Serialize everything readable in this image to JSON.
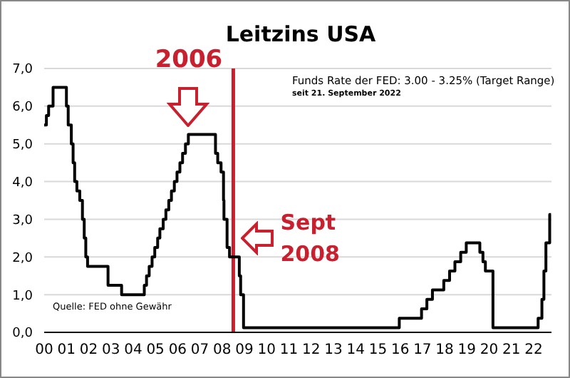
{
  "chart_data": {
    "type": "step",
    "title": "Leitzins USA",
    "x": [
      2000.0,
      2000.1,
      2000.2,
      2000.4,
      2001.0,
      2001.08,
      2001.22,
      2001.3,
      2001.37,
      2001.47,
      2001.6,
      2001.72,
      2001.8,
      2001.87,
      2001.95,
      2002.87,
      2003.48,
      2004.5,
      2004.6,
      2004.72,
      2004.85,
      2004.97,
      2005.1,
      2005.2,
      2005.35,
      2005.47,
      2005.6,
      2005.72,
      2005.85,
      2005.97,
      2006.1,
      2006.22,
      2006.35,
      2006.48,
      2007.7,
      2007.8,
      2007.95,
      2008.06,
      2008.08,
      2008.22,
      2008.33,
      2008.77,
      2008.83,
      2008.96,
      2015.96,
      2016.96,
      2017.2,
      2017.45,
      2017.96,
      2018.22,
      2018.46,
      2018.72,
      2018.97,
      2019.58,
      2019.72,
      2019.83,
      2020.17,
      2022.2,
      2022.37,
      2022.46,
      2022.55,
      2022.72,
      2022.78
    ],
    "series": [
      {
        "color": "#000000",
        "values": [
          5.5,
          5.75,
          6.0,
          6.5,
          6.0,
          5.5,
          5.0,
          4.5,
          4.0,
          3.75,
          3.5,
          3.0,
          2.5,
          2.0,
          1.75,
          1.25,
          1.0,
          1.25,
          1.5,
          1.75,
          2.0,
          2.25,
          2.5,
          2.75,
          3.0,
          3.25,
          3.5,
          3.75,
          4.0,
          4.25,
          4.5,
          4.75,
          5.0,
          5.25,
          4.75,
          4.5,
          4.25,
          3.5,
          3.0,
          2.25,
          2.0,
          1.5,
          1.0,
          0.125,
          0.375,
          0.625,
          0.875,
          1.125,
          1.375,
          1.625,
          1.875,
          2.125,
          2.375,
          2.125,
          1.875,
          1.625,
          0.125,
          0.375,
          0.875,
          1.625,
          2.375,
          3.125,
          3.125
        ]
      }
    ],
    "xlim": [
      2000,
      2022.8
    ],
    "xticks": [
      {
        "value": 2000,
        "label": "00"
      },
      {
        "value": 2001,
        "label": "01"
      },
      {
        "value": 2002,
        "label": "02"
      },
      {
        "value": 2003,
        "label": "03"
      },
      {
        "value": 2004,
        "label": "04"
      },
      {
        "value": 2005,
        "label": "05"
      },
      {
        "value": 2006,
        "label": "06"
      },
      {
        "value": 2007,
        "label": "07"
      },
      {
        "value": 2008,
        "label": "08"
      },
      {
        "value": 2009,
        "label": "09"
      },
      {
        "value": 2010,
        "label": "10"
      },
      {
        "value": 2011,
        "label": "11"
      },
      {
        "value": 2012,
        "label": "12"
      },
      {
        "value": 2013,
        "label": "13"
      },
      {
        "value": 2014,
        "label": "14"
      },
      {
        "value": 2015,
        "label": "15"
      },
      {
        "value": 2016,
        "label": "16"
      },
      {
        "value": 2017,
        "label": "17"
      },
      {
        "value": 2018,
        "label": "18"
      },
      {
        "value": 2019,
        "label": "19"
      },
      {
        "value": 2020,
        "label": "20"
      },
      {
        "value": 2021,
        "label": "21"
      },
      {
        "value": 2022,
        "label": "22"
      }
    ],
    "ylim": [
      0,
      7
    ],
    "yticks": [
      {
        "value": 0,
        "label": "0,0"
      },
      {
        "value": 1,
        "label": "1,0"
      },
      {
        "value": 2,
        "label": "2,0"
      },
      {
        "value": 3,
        "label": "3,0"
      },
      {
        "value": 4,
        "label": "4,0"
      },
      {
        "value": 5,
        "label": "5,0"
      },
      {
        "value": 6,
        "label": "6,0"
      },
      {
        "value": 7,
        "label": "7,0"
      }
    ],
    "grid": "y",
    "ref_lines": [
      {
        "axis": "x",
        "value": 2008.5,
        "color": "#c8202f"
      }
    ],
    "annotations": [
      {
        "text": "2006",
        "x": 2006.5,
        "y": 5.25
      },
      {
        "text": "Sept 2008",
        "x": 2008.5,
        "y": 2.5
      },
      "Funds Rate der FED: 3.00 - 3.25% (Target Range)",
      "seit 21. September 2022",
      "Quelle: FED ohne Gewähr"
    ]
  }
}
